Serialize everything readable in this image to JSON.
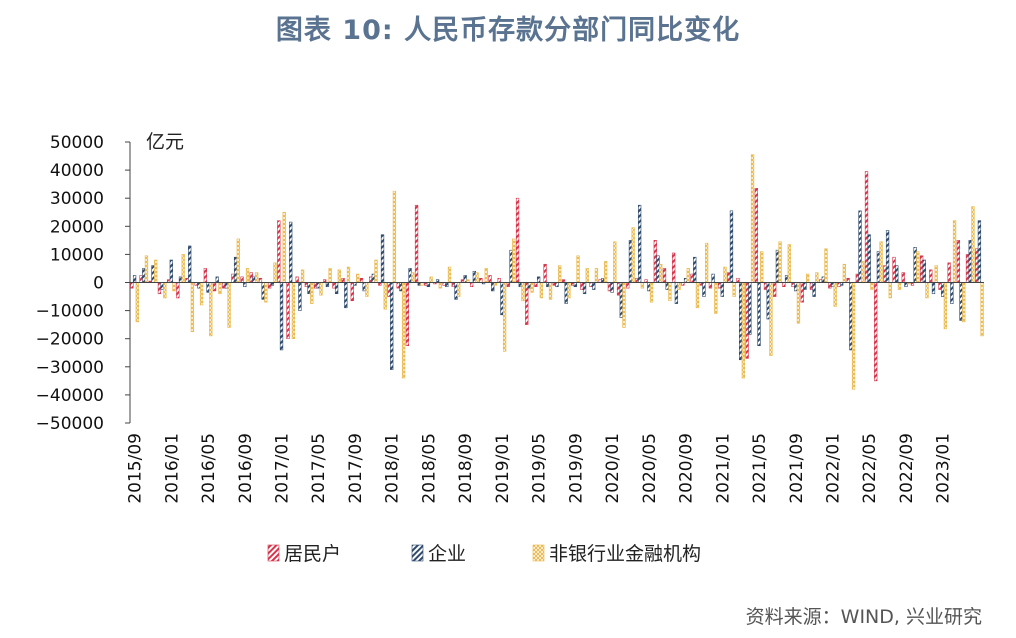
{
  "title": "图表 10: 人民币存款分部门同比变化",
  "source": "资料来源：WIND, 兴业研究",
  "colors": {
    "household": "#d6344b",
    "corporate": "#2e4a6d",
    "nonbank": "#e9b84a"
  },
  "chart_data": {
    "type": "bar",
    "unit": "亿元",
    "ylim": [
      -50000,
      50000
    ],
    "yticks": [
      "50000",
      "40000",
      "30000",
      "20000",
      "10000",
      "0",
      "−10000",
      "−20000",
      "−30000",
      "−40000",
      "−50000"
    ],
    "grid": false,
    "legend_position": "bottom",
    "xtick_labels": [
      "2015/09",
      "2016/01",
      "2016/05",
      "2016/09",
      "2017/01",
      "2017/05",
      "2017/09",
      "2018/01",
      "2018/05",
      "2018/09",
      "2019/01",
      "2019/05",
      "2019/09",
      "2020/01",
      "2020/05",
      "2020/09",
      "2021/01",
      "2021/05",
      "2021/09",
      "2022/01",
      "2022/05",
      "2022/09",
      "2023/01"
    ],
    "series": [
      {
        "name": "居民户",
        "key": "household",
        "values": [
          -2000,
          2500,
          500,
          -4000,
          1000,
          -5500,
          1500,
          -1000,
          5000,
          -3000,
          -2000,
          3000,
          2000,
          3500,
          1500,
          -2000,
          22000,
          -20000,
          2000,
          -1500,
          -2000,
          1000,
          -2000,
          1500,
          -6500,
          1500,
          2000,
          -1000,
          -5000,
          -2000,
          -22500,
          27500,
          -1000,
          -500,
          -1000,
          -1500,
          1000,
          -1500,
          1500,
          2500,
          1500,
          -1500,
          30000,
          -15000,
          -1500,
          6500,
          -1000,
          1000,
          -1000,
          -2500,
          -1500,
          1000,
          -3000,
          -4500,
          -2000,
          1500,
          1000,
          15000,
          5000,
          10500,
          -1000,
          3000,
          -1000,
          -2000,
          -2000,
          3500,
          1500,
          -27000,
          33500,
          -2500,
          -5000,
          -1500,
          -1500,
          -7000,
          -2500,
          1000,
          -2000,
          -1500,
          1500,
          3000,
          39500,
          -35000,
          6000,
          9000,
          3500,
          -1000,
          9500,
          4500,
          -2500,
          7000,
          15000,
          10000,
          12000
        ]
      },
      {
        "name": "企业",
        "key": "corporate",
        "values": [
          2500,
          5000,
          6000,
          -2500,
          8000,
          2000,
          13000,
          -2000,
          -3500,
          2000,
          -2000,
          9000,
          -1500,
          2000,
          -6000,
          -1000,
          -24000,
          21500,
          -10000,
          -4000,
          -2000,
          -1500,
          -4000,
          -9000,
          -1000,
          -3000,
          3000,
          17000,
          -31000,
          -3000,
          5000,
          -1000,
          -1500,
          1000,
          -1500,
          -6000,
          2500,
          4000,
          -500,
          -3000,
          -11500,
          11500,
          -1500,
          -2000,
          2000,
          -1500,
          -1500,
          -7500,
          -1500,
          -4000,
          -2500,
          1500,
          -3500,
          -12500,
          15000,
          27500,
          -3000,
          9500,
          -2500,
          -7500,
          1500,
          9000,
          -5000,
          3000,
          -5000,
          25500,
          -27500,
          -18500,
          -22500,
          -13000,
          11500,
          2500,
          -3000,
          -2500,
          -5000,
          2000,
          -1500,
          -1000,
          -24000,
          25500,
          17000,
          11000,
          18500,
          6000,
          -1500,
          12500,
          8000,
          -4000,
          -5000,
          -7500,
          -13500,
          15000,
          22000
        ]
      },
      {
        "name": "非银行业金融机构",
        "key": "nonbank",
        "values": [
          -14000,
          9500,
          8000,
          -5500,
          -3000,
          10000,
          -17500,
          -8000,
          -19000,
          -4000,
          -16000,
          15500,
          5000,
          3500,
          -7000,
          7000,
          25000,
          -20000,
          4500,
          -7500,
          -4500,
          5000,
          4500,
          5500,
          3000,
          -5000,
          8000,
          -9500,
          32500,
          -34000,
          3500,
          -1000,
          2000,
          -2000,
          5500,
          -5000,
          1000,
          3500,
          5000,
          -1000,
          -24500,
          15500,
          -6500,
          -3500,
          -5500,
          -6000,
          6000,
          -5500,
          9500,
          5000,
          5000,
          7500,
          14500,
          -16000,
          19500,
          -2000,
          -7000,
          6500,
          -6500,
          -2500,
          5000,
          -9000,
          14000,
          -11000,
          5500,
          -5000,
          -34000,
          45500,
          11000,
          -26000,
          14500,
          13500,
          -14500,
          3000,
          3500,
          12000,
          -8500,
          6500,
          -38000,
          7500,
          -2500,
          14500,
          -5500,
          -2500,
          -500,
          11000,
          -5500,
          6000,
          -16500,
          22000,
          -14000,
          27000,
          -19000
        ]
      }
    ]
  },
  "legend": [
    {
      "label": "居民户",
      "key": "household"
    },
    {
      "label": "企业",
      "key": "corporate"
    },
    {
      "label": "非银行业金融机构",
      "key": "nonbank"
    }
  ]
}
